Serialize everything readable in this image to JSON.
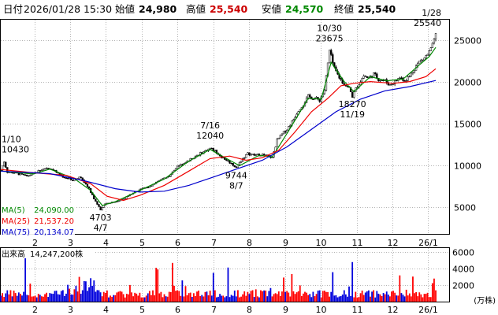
{
  "header": {
    "date_label": "日付",
    "datetime": "2026/01/28 15:30",
    "open_label": "始値",
    "open_value": "24,980",
    "high_label": "高値",
    "high_value": "25,540",
    "low_label": "安値",
    "low_value": "24,570",
    "close_label": "終値",
    "close_value": "25,540"
  },
  "colors": {
    "up": "#ff0000",
    "down": "#0000dd",
    "ma5": "#008800",
    "ma25": "#ee0000",
    "ma75": "#0000cc",
    "grid": "#b4b4b4",
    "frame": "#000000",
    "highlight": "#cc0000"
  },
  "legend": [
    {
      "key": "ma5",
      "label": "MA(5)",
      "value": "24,090.00"
    },
    {
      "key": "ma25",
      "label": "MA(25)",
      "value": "21,537.20"
    },
    {
      "key": "ma75",
      "label": "MA(75)",
      "value": "20,134.07"
    }
  ],
  "volume_panel": {
    "label": "出来高",
    "value": "14,247,200株",
    "unit": "(万株)"
  },
  "chart_data": {
    "type": "candlestick",
    "price_axis": {
      "ticks": [
        5000,
        10000,
        15000,
        20000,
        25000
      ],
      "ylim": [
        1800,
        27400
      ],
      "grid": true,
      "side": "right"
    },
    "volume_axis": {
      "ticks": [
        2000,
        4000,
        6000
      ],
      "ylim": [
        0,
        6500
      ],
      "unit": "万株"
    },
    "x_axis": {
      "tick_labels": [
        "2",
        "3",
        "4",
        "5",
        "6",
        "7",
        "8",
        "9",
        "10",
        "11",
        "12",
        "26/1"
      ],
      "xlim": [
        0,
        266
      ]
    },
    "annotations": [
      {
        "date": "1/10",
        "value": "10430",
        "x": 0,
        "y": 10430,
        "type": "high"
      },
      {
        "date": "4/7",
        "value": "4703",
        "x": 61,
        "y": 4703,
        "type": "low"
      },
      {
        "date": "7/16",
        "value": "12040",
        "x": 128,
        "y": 12040,
        "type": "high"
      },
      {
        "date": "8/7",
        "value": "9744",
        "x": 144,
        "y": 9744,
        "type": "low"
      },
      {
        "date": "10/30",
        "value": "23675",
        "x": 201,
        "y": 23675,
        "type": "high"
      },
      {
        "date": "11/19",
        "value": "18270",
        "x": 215,
        "y": 18270,
        "type": "low"
      },
      {
        "date": "1/28",
        "value": "25540",
        "x": 266,
        "y": 25540,
        "type": "high"
      }
    ],
    "price_path": [
      [
        0,
        9400
      ],
      [
        2,
        10430
      ],
      [
        4,
        9200
      ],
      [
        8,
        9100
      ],
      [
        12,
        8900
      ],
      [
        16,
        8700
      ],
      [
        20,
        9000
      ],
      [
        24,
        9400
      ],
      [
        28,
        9700
      ],
      [
        32,
        9500
      ],
      [
        36,
        8800
      ],
      [
        40,
        8500
      ],
      [
        44,
        8200
      ],
      [
        48,
        8600
      ],
      [
        51,
        8000
      ],
      [
        54,
        7200
      ],
      [
        57,
        6000
      ],
      [
        61,
        4703
      ],
      [
        64,
        5400
      ],
      [
        68,
        5600
      ],
      [
        72,
        5700
      ],
      [
        76,
        6100
      ],
      [
        80,
        6600
      ],
      [
        84,
        7000
      ],
      [
        88,
        7300
      ],
      [
        92,
        7500
      ],
      [
        96,
        8200
      ],
      [
        100,
        8400
      ],
      [
        104,
        8900
      ],
      [
        108,
        9800
      ],
      [
        112,
        10300
      ],
      [
        116,
        10700
      ],
      [
        120,
        11200
      ],
      [
        124,
        11600
      ],
      [
        128,
        12040
      ],
      [
        131,
        11700
      ],
      [
        135,
        11000
      ],
      [
        139,
        10500
      ],
      [
        144,
        9744
      ],
      [
        147,
        10600
      ],
      [
        151,
        11400
      ],
      [
        155,
        11200
      ],
      [
        159,
        11300
      ],
      [
        163,
        11100
      ],
      [
        166,
        10900
      ],
      [
        169,
        13000
      ],
      [
        172,
        13700
      ],
      [
        175,
        14300
      ],
      [
        179,
        15500
      ],
      [
        182,
        16600
      ],
      [
        185,
        17300
      ],
      [
        188,
        18200
      ],
      [
        192,
        18000
      ],
      [
        195,
        17800
      ],
      [
        198,
        19000
      ],
      [
        201,
        23675
      ],
      [
        204,
        21500
      ],
      [
        207,
        20500
      ],
      [
        210,
        19700
      ],
      [
        213,
        19200
      ],
      [
        215,
        18270
      ],
      [
        218,
        19500
      ],
      [
        222,
        20700
      ],
      [
        225,
        20400
      ],
      [
        228,
        20900
      ],
      [
        231,
        20300
      ],
      [
        235,
        20100
      ],
      [
        238,
        19600
      ],
      [
        241,
        20000
      ],
      [
        244,
        20500
      ],
      [
        247,
        20200
      ],
      [
        250,
        20600
      ],
      [
        253,
        21600
      ],
      [
        256,
        22400
      ],
      [
        259,
        22800
      ],
      [
        262,
        23500
      ],
      [
        264,
        24300
      ],
      [
        266,
        25540
      ]
    ],
    "ma_paths": {
      "ma5": [
        [
          0,
          9300
        ],
        [
          20,
          8950
        ],
        [
          30,
          9550
        ],
        [
          45,
          8400
        ],
        [
          55,
          7000
        ],
        [
          62,
          5200
        ],
        [
          70,
          5650
        ],
        [
          84,
          6900
        ],
        [
          100,
          8350
        ],
        [
          115,
          10500
        ],
        [
          128,
          11900
        ],
        [
          140,
          10600
        ],
        [
          146,
          9950
        ],
        [
          158,
          11200
        ],
        [
          166,
          11000
        ],
        [
          176,
          14100
        ],
        [
          188,
          18000
        ],
        [
          196,
          17900
        ],
        [
          202,
          22300
        ],
        [
          210,
          20000
        ],
        [
          216,
          18800
        ],
        [
          226,
          20600
        ],
        [
          236,
          20100
        ],
        [
          246,
          20300
        ],
        [
          256,
          22000
        ],
        [
          262,
          23000
        ],
        [
          266,
          24090
        ]
      ],
      "ma25": [
        [
          0,
          9500
        ],
        [
          20,
          9100
        ],
        [
          40,
          8800
        ],
        [
          55,
          7800
        ],
        [
          65,
          6300
        ],
        [
          75,
          5800
        ],
        [
          85,
          6400
        ],
        [
          100,
          7600
        ],
        [
          115,
          9300
        ],
        [
          128,
          10800
        ],
        [
          140,
          11100
        ],
        [
          150,
          10600
        ],
        [
          160,
          10900
        ],
        [
          170,
          11800
        ],
        [
          180,
          14000
        ],
        [
          190,
          16400
        ],
        [
          200,
          18000
        ],
        [
          208,
          19500
        ],
        [
          216,
          19800
        ],
        [
          226,
          20000
        ],
        [
          240,
          19800
        ],
        [
          250,
          20000
        ],
        [
          260,
          20600
        ],
        [
          266,
          21537.2
        ]
      ],
      "ma75": [
        [
          0,
          9300
        ],
        [
          30,
          9000
        ],
        [
          50,
          8200
        ],
        [
          70,
          7200
        ],
        [
          85,
          6800
        ],
        [
          100,
          6900
        ],
        [
          115,
          7600
        ],
        [
          130,
          8600
        ],
        [
          145,
          9600
        ],
        [
          160,
          10600
        ],
        [
          175,
          12200
        ],
        [
          190,
          14300
        ],
        [
          205,
          16400
        ],
        [
          220,
          17900
        ],
        [
          235,
          18900
        ],
        [
          250,
          19400
        ],
        [
          266,
          20134.07
        ]
      ]
    }
  }
}
